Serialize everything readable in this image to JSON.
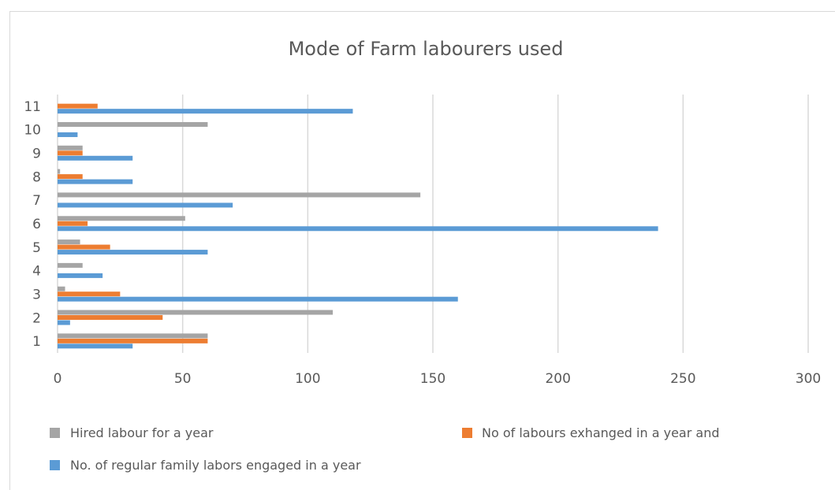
{
  "chart_data": {
    "type": "bar",
    "orientation": "horizontal",
    "title": "Mode of Farm labourers used",
    "categories": [
      "1",
      "2",
      "3",
      "4",
      "5",
      "6",
      "7",
      "8",
      "9",
      "10",
      "11"
    ],
    "series": [
      {
        "name": "Hired labour for a year",
        "color": "#a5a5a5",
        "values": [
          60,
          110,
          3,
          10,
          9,
          51,
          145,
          1,
          10,
          60,
          0
        ]
      },
      {
        "name": "No of labours exhanged in a year and",
        "color": "#ed7d31",
        "values": [
          60,
          42,
          25,
          0,
          21,
          12,
          0,
          10,
          10,
          0,
          16
        ]
      },
      {
        "name": "No. of regular family labors engaged in a year",
        "color": "#5b9bd5",
        "values": [
          30,
          5,
          160,
          18,
          60,
          240,
          70,
          30,
          30,
          8,
          118
        ]
      }
    ],
    "xlim": [
      0,
      300
    ],
    "xticks": [
      0,
      50,
      100,
      150,
      200,
      250,
      300
    ],
    "grid": true,
    "legend_position": "bottom"
  }
}
